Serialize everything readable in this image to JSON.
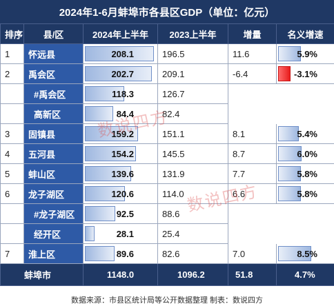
{
  "title": "2024年1-6月蚌埠市各县区GDP（单位：亿元）",
  "headers": [
    "排序",
    "县/区",
    "2024年上半年",
    "2023上半年",
    "增量",
    "名义增速"
  ],
  "rows": [
    {
      "rank": "1",
      "county": "怀远县",
      "v2024": "208.1",
      "v2024_value": 208.1,
      "v2023": "196.5",
      "inc": "11.6",
      "growth": "5.9%",
      "growth_value": 5.9
    },
    {
      "rank": "2",
      "county": "禹会区",
      "v2024": "202.7",
      "v2024_value": 202.7,
      "v2023": "209.1",
      "inc": "-6.4",
      "growth": "-3.1%",
      "growth_value": -3.1
    },
    {
      "rank": "",
      "county": "#禹会区",
      "v2024": "118.3",
      "v2024_value": 118.3,
      "v2023": "126.7",
      "inc": "",
      "growth": "",
      "growth_value": null
    },
    {
      "rank": "",
      "county": "高新区",
      "v2024": "84.4",
      "v2024_value": 84.4,
      "v2023": "82.4",
      "inc": "",
      "growth": "",
      "growth_value": null
    },
    {
      "rank": "3",
      "county": "固镇县",
      "v2024": "159.2",
      "v2024_value": 159.2,
      "v2023": "151.1",
      "inc": "8.1",
      "growth": "5.4%",
      "growth_value": 5.4
    },
    {
      "rank": "4",
      "county": "五河县",
      "v2024": "154.2",
      "v2024_value": 154.2,
      "v2023": "145.5",
      "inc": "8.7",
      "growth": "6.0%",
      "growth_value": 6.0
    },
    {
      "rank": "5",
      "county": "蚌山区",
      "v2024": "139.6",
      "v2024_value": 139.6,
      "v2023": "131.9",
      "inc": "7.7",
      "growth": "5.8%",
      "growth_value": 5.8
    },
    {
      "rank": "6",
      "county": "龙子湖区",
      "v2024": "120.6",
      "v2024_value": 120.6,
      "v2023": "114.0",
      "inc": "6.6",
      "growth": "5.8%",
      "growth_value": 5.8
    },
    {
      "rank": "",
      "county": "#龙子湖区",
      "v2024": "92.5",
      "v2024_value": 92.5,
      "v2023": "88.6",
      "inc": "",
      "growth": "",
      "growth_value": null
    },
    {
      "rank": "",
      "county": "经开区",
      "v2024": "28.1",
      "v2024_value": 28.1,
      "v2023": "25.4",
      "inc": "",
      "growth": "",
      "growth_value": null
    },
    {
      "rank": "7",
      "county": "淮上区",
      "v2024": "89.6",
      "v2024_value": 89.6,
      "v2023": "82.6",
      "inc": "7.0",
      "growth": "8.5%",
      "growth_value": 8.5
    }
  ],
  "total": {
    "label": "蚌埠市",
    "v2024": "1148.0",
    "v2023": "1096.2",
    "inc": "51.8",
    "growth": "4.7%"
  },
  "footer": "数据来源：市县区统计局等公开数据整理   制表：数说四方",
  "watermark": "数说四方",
  "colors": {
    "header_bg": "#1f3864",
    "county_bg": "#2e5aa6",
    "positive_bar": "#9fb8e0",
    "negative_bar": "#e81d1d"
  }
}
